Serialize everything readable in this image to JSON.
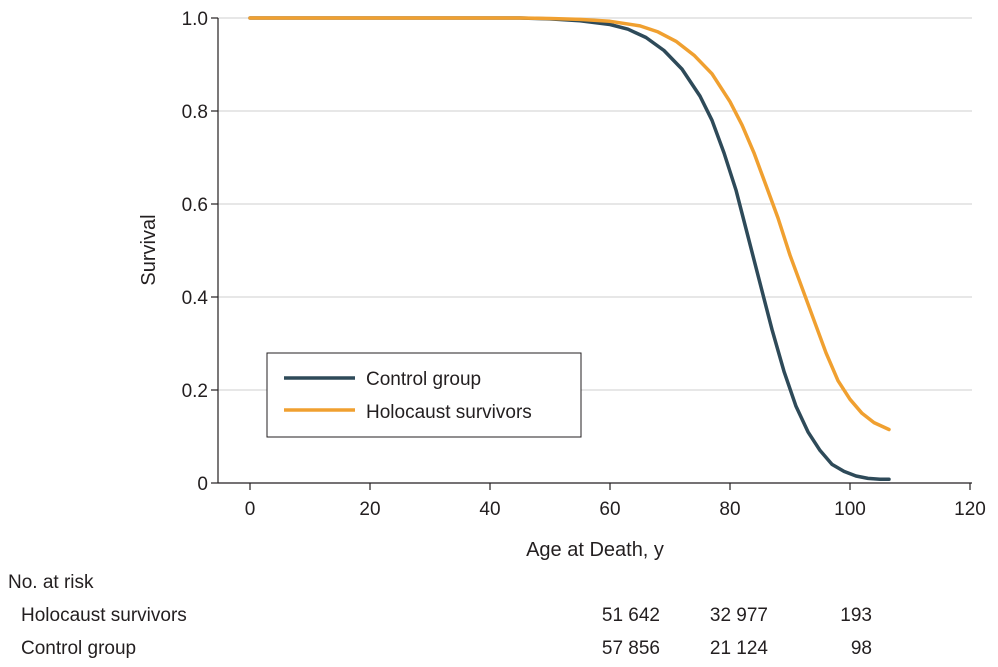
{
  "chart_data": {
    "type": "line",
    "title": "",
    "xlabel": "Age at Death, y",
    "ylabel": "Survival",
    "xlim": [
      0,
      120
    ],
    "ylim": [
      0,
      1.0
    ],
    "x_ticks": [
      0,
      20,
      40,
      60,
      80,
      100,
      120
    ],
    "x_tick_labels": [
      "0",
      "20",
      "40",
      "60",
      "80",
      "100",
      "120"
    ],
    "y_ticks": [
      0,
      0.2,
      0.4,
      0.6,
      0.8,
      1.0
    ],
    "y_tick_labels": [
      "0",
      "0.2",
      "0.4",
      "0.6",
      "0.8",
      "1.0"
    ],
    "grid": "horizontal",
    "legend_position": "bottom-left",
    "series": [
      {
        "name": "Control group",
        "color": "#2e4a59",
        "x": [
          0,
          45,
          50,
          55,
          60,
          63,
          66,
          69,
          72,
          75,
          77,
          79,
          81,
          83,
          85,
          87,
          89,
          91,
          93,
          95,
          97,
          99,
          101,
          103,
          105,
          106.5
        ],
        "y": [
          1.0,
          1.0,
          0.998,
          0.994,
          0.986,
          0.976,
          0.958,
          0.93,
          0.89,
          0.832,
          0.78,
          0.71,
          0.63,
          0.53,
          0.43,
          0.33,
          0.24,
          0.165,
          0.11,
          0.07,
          0.04,
          0.025,
          0.015,
          0.01,
          0.008,
          0.008
        ]
      },
      {
        "name": "Holocaust survivors",
        "color": "#f0a030",
        "x": [
          0,
          45,
          50,
          55,
          60,
          65,
          68,
          71,
          74,
          77,
          80,
          82,
          84,
          86,
          88,
          90,
          92,
          94,
          96,
          98,
          100,
          102,
          104,
          106.5
        ],
        "y": [
          1.0,
          1.0,
          0.999,
          0.997,
          0.993,
          0.983,
          0.97,
          0.95,
          0.92,
          0.88,
          0.82,
          0.77,
          0.71,
          0.64,
          0.57,
          0.49,
          0.42,
          0.35,
          0.28,
          0.22,
          0.18,
          0.15,
          0.13,
          0.115
        ]
      }
    ]
  },
  "risk_table": {
    "heading": "No. at risk",
    "rows": [
      {
        "label": "Holocaust survivors",
        "values": [
          "51 642",
          "32 977",
          "193"
        ]
      },
      {
        "label": "Control group",
        "values": [
          "57 856",
          "21 124",
          "98"
        ]
      }
    ]
  }
}
